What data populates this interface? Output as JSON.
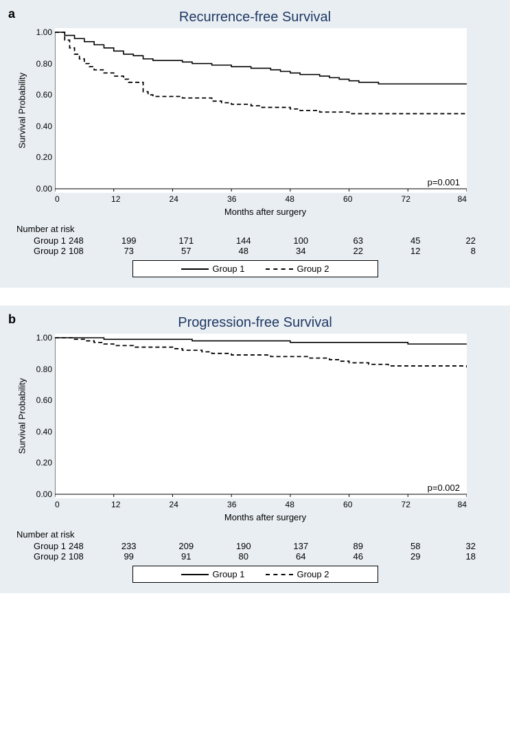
{
  "panels": [
    {
      "label": "a",
      "title": "Recurrence-free Survival",
      "ylabel": "Survival Probability",
      "xlabel": "Months after surgery",
      "pvalue": "p=0.001",
      "xlim": [
        0,
        84
      ],
      "xtick_step": 12,
      "xticks": [
        0,
        12,
        24,
        36,
        48,
        60,
        72,
        84
      ],
      "ylim": [
        0.0,
        1.0
      ],
      "ytick_step": 0.2,
      "yticks": [
        "0.00",
        "0.20",
        "0.40",
        "0.60",
        "0.80",
        "1.00"
      ],
      "background_color": "#e9eef2",
      "plot_bg": "#ffffff",
      "title_color": "#1f3864",
      "font_size_title": 20,
      "font_size_labels": 13,
      "font_size_ticks": 12,
      "series": [
        {
          "name": "Group 1",
          "color": "#000000",
          "dash": "solid",
          "line_width": 1.6,
          "points": [
            [
              0,
              1.0
            ],
            [
              2,
              0.98
            ],
            [
              4,
              0.96
            ],
            [
              6,
              0.94
            ],
            [
              8,
              0.92
            ],
            [
              10,
              0.9
            ],
            [
              12,
              0.88
            ],
            [
              14,
              0.86
            ],
            [
              16,
              0.85
            ],
            [
              18,
              0.83
            ],
            [
              20,
              0.82
            ],
            [
              24,
              0.82
            ],
            [
              26,
              0.81
            ],
            [
              28,
              0.8
            ],
            [
              30,
              0.8
            ],
            [
              32,
              0.79
            ],
            [
              36,
              0.78
            ],
            [
              40,
              0.77
            ],
            [
              44,
              0.76
            ],
            [
              46,
              0.75
            ],
            [
              48,
              0.74
            ],
            [
              50,
              0.73
            ],
            [
              54,
              0.72
            ],
            [
              56,
              0.71
            ],
            [
              58,
              0.7
            ],
            [
              60,
              0.69
            ],
            [
              62,
              0.68
            ],
            [
              66,
              0.67
            ],
            [
              70,
              0.67
            ],
            [
              84,
              0.67
            ]
          ]
        },
        {
          "name": "Group 2",
          "color": "#000000",
          "dash": "dashed",
          "line_width": 1.8,
          "points": [
            [
              0,
              1.0
            ],
            [
              2,
              0.95
            ],
            [
              3,
              0.9
            ],
            [
              4,
              0.86
            ],
            [
              5,
              0.83
            ],
            [
              6,
              0.8
            ],
            [
              7,
              0.78
            ],
            [
              8,
              0.76
            ],
            [
              10,
              0.74
            ],
            [
              12,
              0.72
            ],
            [
              14,
              0.7
            ],
            [
              15,
              0.68
            ],
            [
              17,
              0.68
            ],
            [
              18,
              0.62
            ],
            [
              19,
              0.6
            ],
            [
              20,
              0.59
            ],
            [
              24,
              0.59
            ],
            [
              26,
              0.58
            ],
            [
              28,
              0.58
            ],
            [
              30,
              0.58
            ],
            [
              32,
              0.56
            ],
            [
              34,
              0.55
            ],
            [
              36,
              0.54
            ],
            [
              38,
              0.54
            ],
            [
              40,
              0.53
            ],
            [
              42,
              0.52
            ],
            [
              44,
              0.52
            ],
            [
              48,
              0.51
            ],
            [
              50,
              0.5
            ],
            [
              54,
              0.49
            ],
            [
              58,
              0.49
            ],
            [
              60,
              0.48
            ],
            [
              84,
              0.48
            ]
          ]
        }
      ],
      "risk_title": "Number at risk",
      "risk_rows": [
        {
          "label": "Group 1",
          "values": [
            248,
            199,
            171,
            144,
            100,
            63,
            45,
            22
          ]
        },
        {
          "label": "Group 2",
          "values": [
            108,
            73,
            57,
            48,
            34,
            22,
            12,
            8
          ]
        }
      ],
      "legend": [
        {
          "label": "Group 1",
          "dash": "solid"
        },
        {
          "label": "Group 2",
          "dash": "dashed"
        }
      ]
    },
    {
      "label": "b",
      "title": "Progression-free Survival",
      "ylabel": "Survival Probability",
      "xlabel": "Months after surgery",
      "pvalue": "p=0.002",
      "xlim": [
        0,
        84
      ],
      "xtick_step": 12,
      "xticks": [
        0,
        12,
        24,
        36,
        48,
        60,
        72,
        84
      ],
      "ylim": [
        0.0,
        1.0
      ],
      "ytick_step": 0.2,
      "yticks": [
        "0.00",
        "0.20",
        "0.40",
        "0.60",
        "0.80",
        "1.00"
      ],
      "background_color": "#e9eef2",
      "plot_bg": "#ffffff",
      "title_color": "#1f3864",
      "font_size_title": 20,
      "font_size_labels": 13,
      "font_size_ticks": 12,
      "series": [
        {
          "name": "Group 1",
          "color": "#000000",
          "dash": "solid",
          "line_width": 1.6,
          "points": [
            [
              0,
              1.0
            ],
            [
              6,
              1.0
            ],
            [
              10,
              0.99
            ],
            [
              18,
              0.99
            ],
            [
              24,
              0.99
            ],
            [
              28,
              0.98
            ],
            [
              36,
              0.98
            ],
            [
              44,
              0.98
            ],
            [
              48,
              0.97
            ],
            [
              56,
              0.97
            ],
            [
              64,
              0.97
            ],
            [
              72,
              0.96
            ],
            [
              84,
              0.96
            ]
          ]
        },
        {
          "name": "Group 2",
          "color": "#000000",
          "dash": "dashed",
          "line_width": 1.8,
          "points": [
            [
              0,
              1.0
            ],
            [
              4,
              0.99
            ],
            [
              6,
              0.98
            ],
            [
              8,
              0.97
            ],
            [
              10,
              0.96
            ],
            [
              12,
              0.95
            ],
            [
              16,
              0.94
            ],
            [
              20,
              0.94
            ],
            [
              24,
              0.93
            ],
            [
              26,
              0.92
            ],
            [
              30,
              0.91
            ],
            [
              32,
              0.9
            ],
            [
              36,
              0.89
            ],
            [
              40,
              0.89
            ],
            [
              44,
              0.88
            ],
            [
              48,
              0.88
            ],
            [
              52,
              0.87
            ],
            [
              56,
              0.86
            ],
            [
              58,
              0.85
            ],
            [
              60,
              0.84
            ],
            [
              64,
              0.83
            ],
            [
              68,
              0.82
            ],
            [
              72,
              0.82
            ],
            [
              84,
              0.81
            ]
          ]
        }
      ],
      "risk_title": "Number at risk",
      "risk_rows": [
        {
          "label": "Group 1",
          "values": [
            248,
            233,
            209,
            190,
            137,
            89,
            58,
            32
          ]
        },
        {
          "label": "Group 2",
          "values": [
            108,
            99,
            91,
            80,
            64,
            46,
            29,
            18
          ]
        }
      ],
      "legend": [
        {
          "label": "Group 1",
          "dash": "solid"
        },
        {
          "label": "Group 2",
          "dash": "dashed"
        }
      ]
    }
  ]
}
